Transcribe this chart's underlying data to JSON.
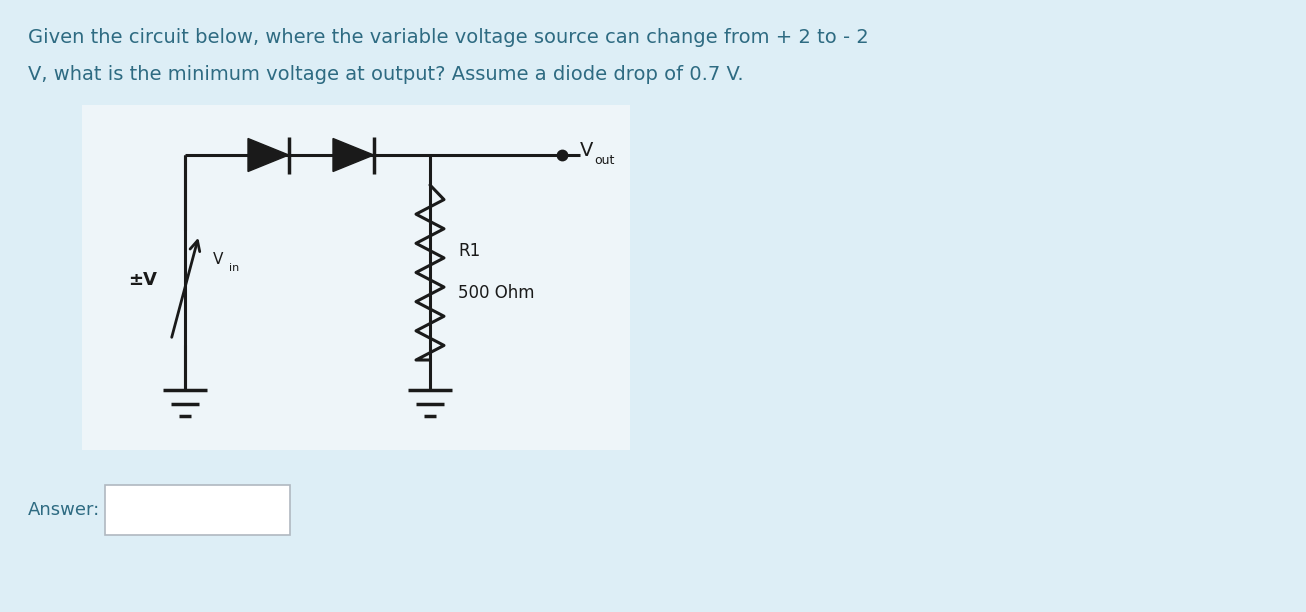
{
  "bg_color": "#ddeef6",
  "circuit_bg": "#eef5f9",
  "title_line1": "Given the circuit below, where the variable voltage source can change from + 2 to - 2",
  "title_line2": "V, what is the minimum voltage at output? Assume a diode drop of 0.7 V.",
  "answer_label": "Answer:",
  "title_fontsize": 14,
  "title_color": "#2e6b82",
  "answer_color": "#2e6b82"
}
